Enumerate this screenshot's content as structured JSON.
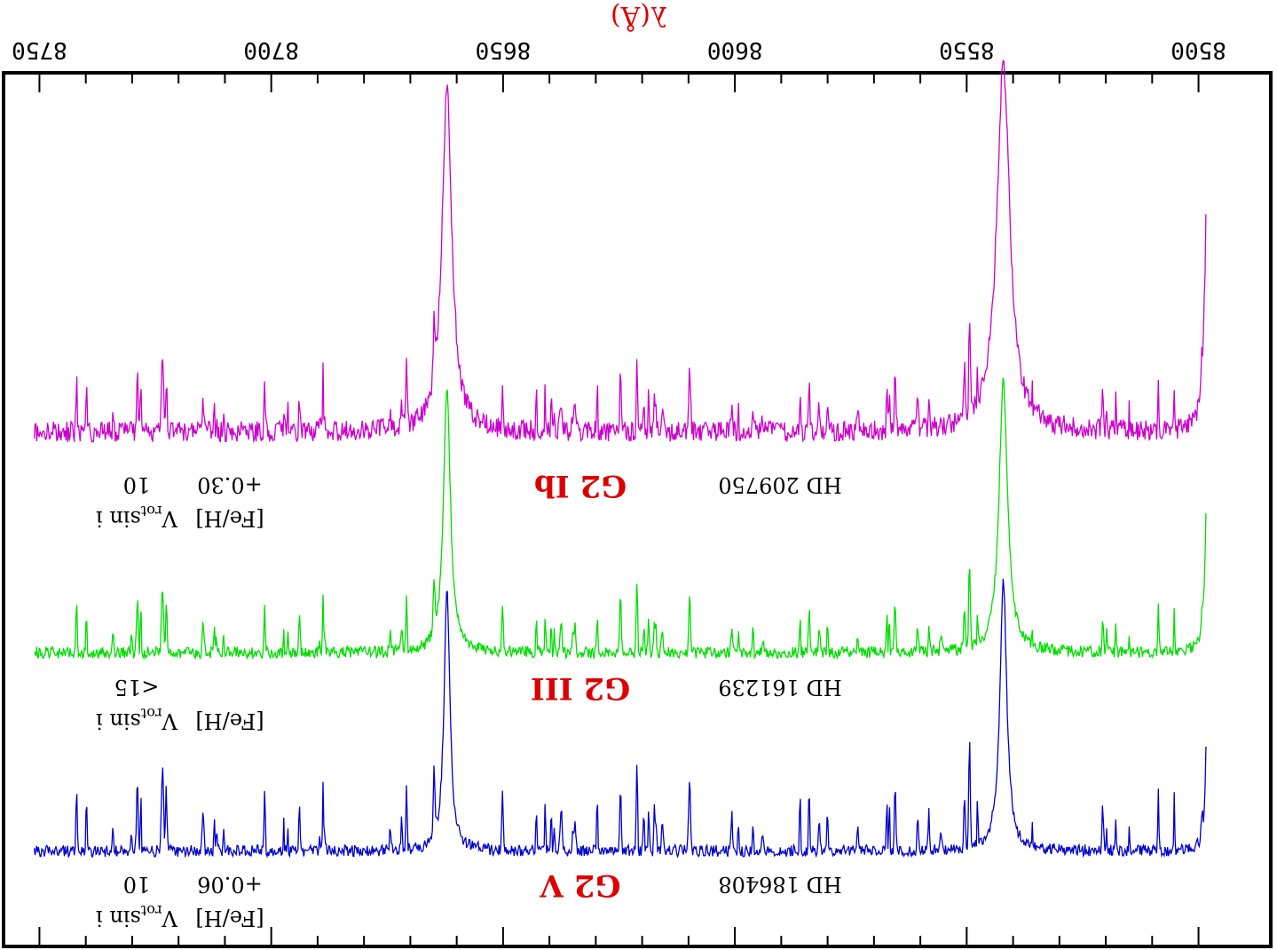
{
  "chart_data": {
    "type": "line",
    "xlabel": "λ(Å)",
    "x_range": [
      8498,
      8752
    ],
    "x_ticks": [
      8500,
      8550,
      8600,
      8650,
      8700,
      8750
    ],
    "x_tick_labels": [
      "8500",
      "8550",
      "8600",
      "8650",
      "8700",
      "8750"
    ],
    "x_minor_step": 10,
    "reversed_orientation": true,
    "grid": false,
    "line_centers": [
      8498.0,
      8542.1,
      8662.1
    ],
    "series": [
      {
        "name": "HD 209750",
        "spectral_type": "G2 Ib",
        "color": "#cc00cc",
        "fe_h": "+0.30",
        "vsini": "10",
        "continuum": 0.95,
        "line_depths": [
          0.78,
          0.88,
          0.82
        ],
        "line_widths": [
          0.6,
          1.7,
          1.3
        ],
        "noise": 0.05
      },
      {
        "name": "HD 161239",
        "spectral_type": "G2 III",
        "color": "#00dd00",
        "fe_h": "",
        "vsini": "<15",
        "continuum": 0.97,
        "line_depths": [
          0.88,
          0.93,
          0.9
        ],
        "line_widths": [
          0.45,
          1.1,
          0.9
        ],
        "noise": 0.04
      },
      {
        "name": "HD 186408",
        "spectral_type": "G2 V",
        "color": "#0000cc",
        "fe_h": "+0.06",
        "vsini": "10",
        "continuum": 0.98,
        "line_depths": [
          0.86,
          0.92,
          0.9
        ],
        "line_widths": [
          0.35,
          0.9,
          0.75
        ],
        "noise": 0.04
      }
    ]
  },
  "labels": {
    "fe_h_header": "[Fe/H]",
    "vsini_header_v": "V",
    "vsini_header_sub": "rot",
    "vsini_header_tail": "sin i"
  },
  "colors": {
    "label_red": "#dd0000",
    "axis": "#000000"
  }
}
